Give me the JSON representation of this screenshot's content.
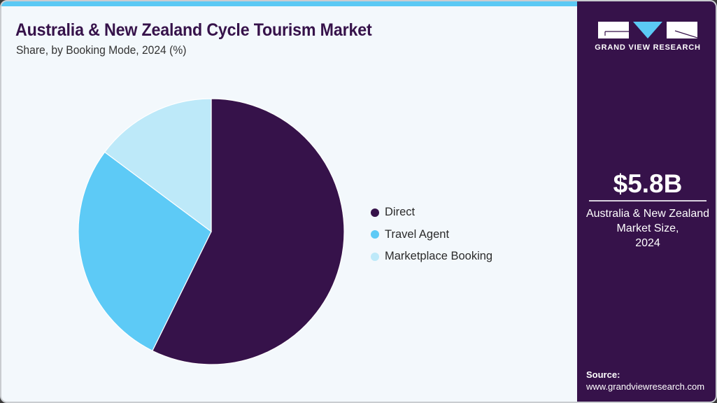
{
  "header": {
    "title": "Australia & New Zealand Cycle Tourism Market",
    "subtitle": "Share, by Booking Mode, 2024 (%)"
  },
  "colors": {
    "accent_bar": "#5bc9f4",
    "sidebar_bg": "#36124a",
    "panel_bg": "#f3f8fc",
    "direct": "#36124a",
    "travel_agent": "#5dcaf6",
    "marketplace_booking": "#bde9f9"
  },
  "legend": {
    "items": [
      {
        "label": "Direct",
        "color": "#36124a",
        "icon": "circle-dot-icon"
      },
      {
        "label": "Travel Agent",
        "color": "#5dcaf6",
        "icon": "circle-dot-icon"
      },
      {
        "label": "Marketplace Booking",
        "color": "#bde9f9",
        "icon": "circle-dot-icon"
      }
    ]
  },
  "sidebar": {
    "logo_text": "GRAND VIEW RESEARCH",
    "market_value": "$5.8B",
    "market_desc_line1": "Australia & New Zealand",
    "market_desc_line2": "Market Size,",
    "market_desc_line3": "2024",
    "source_label": "Source:",
    "source_url": "www.grandviewresearch.com"
  },
  "chart_data": {
    "type": "pie",
    "title": "Australia & New Zealand Cycle Tourism Market",
    "subtitle": "Share, by Booking Mode, 2024 (%)",
    "categories": [
      "Direct",
      "Travel Agent",
      "Marketplace Booking"
    ],
    "values": [
      57.3,
      27.9,
      14.8
    ],
    "colors": [
      "#36124a",
      "#5dcaf6",
      "#bde9f9"
    ],
    "start_angle_deg": 0,
    "direction": "clockwise",
    "legend_position": "right",
    "data_labels": false
  }
}
